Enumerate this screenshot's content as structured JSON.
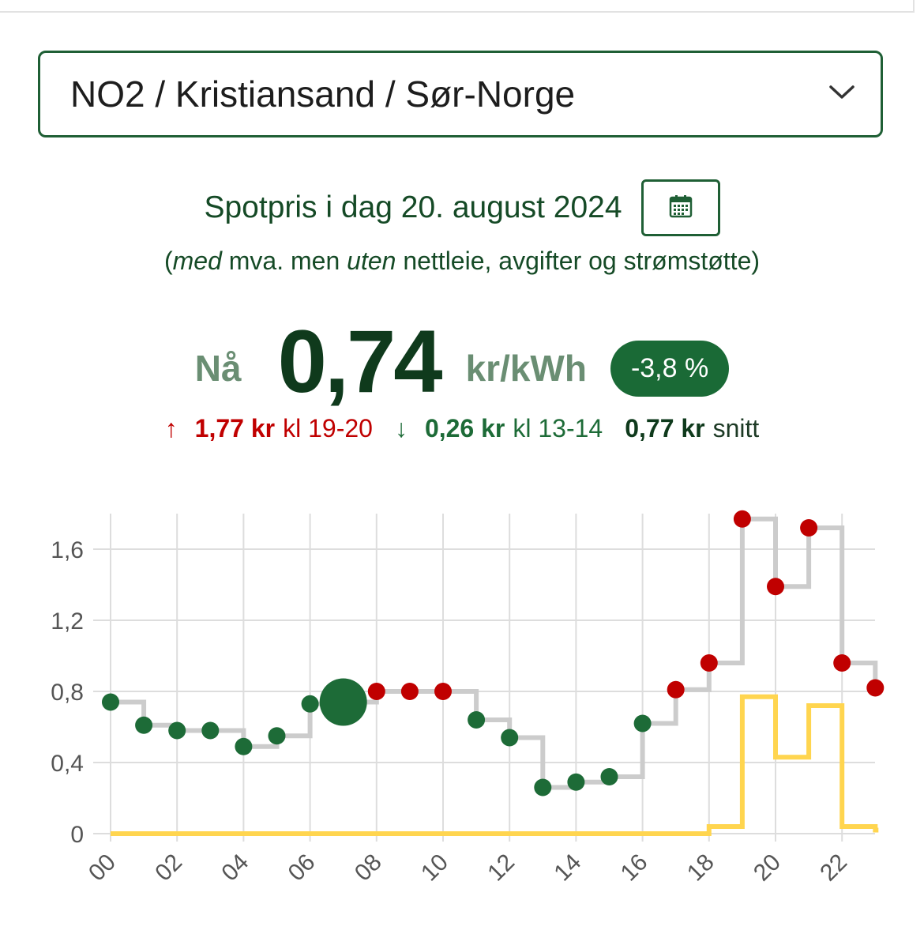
{
  "region": {
    "value": "NO2 / Kristiansand / Sør-Norge"
  },
  "heading": {
    "title": "Spotpris i dag 20. august 2024",
    "subtitle_open": "(",
    "subtitle_med": "med",
    "subtitle_mid": " mva. men ",
    "subtitle_uten": "uten",
    "subtitle_end": " nettleie, avgifter og strømstøtte)"
  },
  "current": {
    "label": "Nå",
    "price": "0,74",
    "unit": "kr/kWh",
    "change": "-3,8 %"
  },
  "stats": {
    "max_arrow": "↑",
    "max_value": "1,77 kr",
    "max_time": "kl 19-20",
    "min_arrow": "↓",
    "min_value": "0,26 kr",
    "min_time": "kl 13-14",
    "avg_value": "0,77 kr",
    "avg_label": "snitt"
  },
  "colors": {
    "above_avg": "#c00000",
    "below_avg": "#1d6b37",
    "step_line": "#cccccc",
    "support_line": "#ffd54f",
    "brand": "#1f5f35"
  },
  "icons": {
    "region_dropdown": "chevron-down-icon",
    "calendar": "calendar-icon"
  },
  "chart_data": {
    "type": "line",
    "x": [
      0,
      1,
      2,
      3,
      4,
      5,
      6,
      7,
      8,
      9,
      10,
      11,
      12,
      13,
      14,
      15,
      16,
      17,
      18,
      19,
      20,
      21,
      22,
      23
    ],
    "x_tick_labels": [
      "00",
      "02",
      "04",
      "06",
      "08",
      "10",
      "12",
      "14",
      "16",
      "18",
      "20",
      "22"
    ],
    "y_tick_labels": [
      "0",
      "0,4",
      "0,8",
      "1,2",
      "1,6"
    ],
    "ylim": [
      0,
      1.8
    ],
    "current_hour": 7,
    "average": 0.77,
    "series": [
      {
        "values": [
          0.74,
          0.61,
          0.58,
          0.58,
          0.49,
          0.55,
          0.73,
          0.74,
          0.8,
          0.8,
          0.8,
          0.64,
          0.54,
          0.26,
          0.29,
          0.32,
          0.62,
          0.81,
          0.96,
          1.77,
          1.39,
          1.72,
          0.96,
          0.82
        ]
      },
      {
        "values": [
          0,
          0,
          0,
          0,
          0,
          0,
          0,
          0,
          0,
          0,
          0,
          0,
          0,
          0,
          0,
          0,
          0,
          0,
          0.04,
          0.77,
          0.43,
          0.72,
          0.04,
          0.02
        ]
      }
    ]
  }
}
